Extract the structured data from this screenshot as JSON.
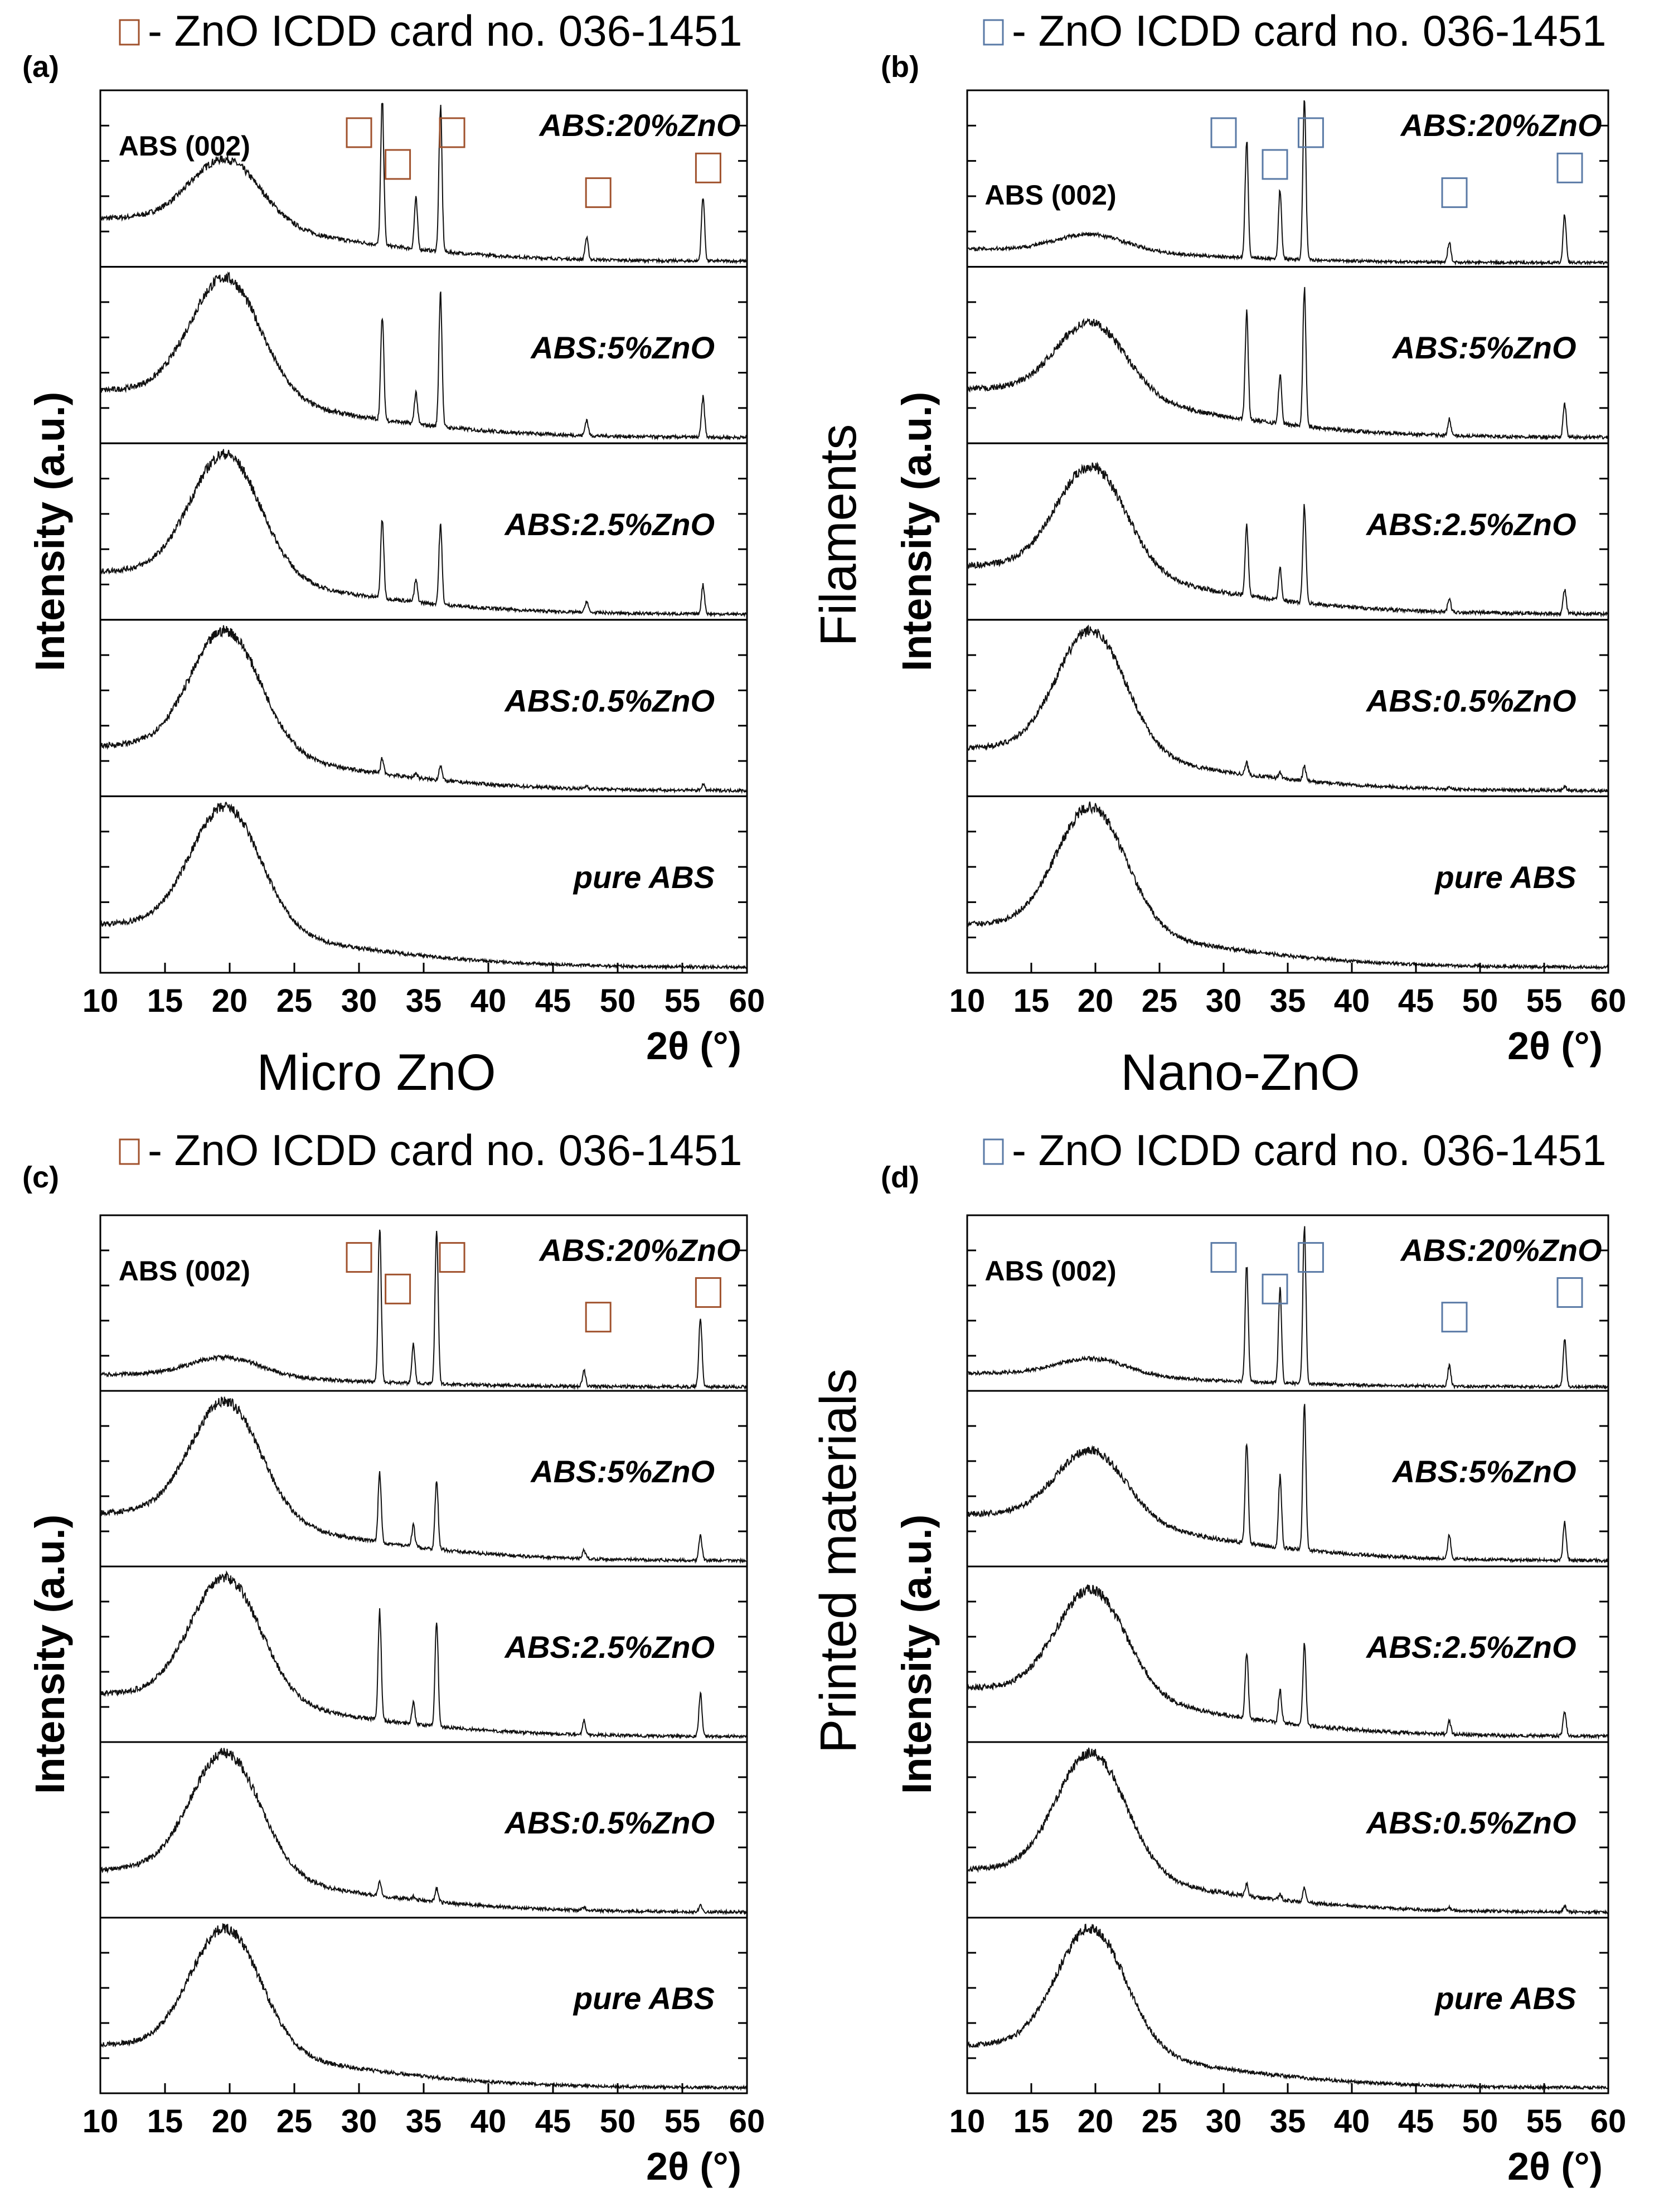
{
  "figure": {
    "side_labels": {
      "left_top": "Micro ZnO",
      "right_top": "Nano-ZnO",
      "right_column_top": "Filaments",
      "right_column_bottom": "Printed materials"
    }
  },
  "chart_data": [
    {
      "type": "line",
      "panel": "(a)",
      "legend": "- ZnO ICDD card no. 036-1451",
      "marker_color": "#a0522d",
      "xlabel": "2θ (°)",
      "ylabel": "Intensity (a.u.)",
      "xlim": [
        10,
        60
      ],
      "x_ticks": [
        "10",
        "15",
        "20",
        "25",
        "30",
        "35",
        "40",
        "45",
        "50",
        "55",
        "60"
      ],
      "annotation": "ABS (002)",
      "reference_peaks": [
        30,
        33,
        37.2,
        48.5,
        57
      ],
      "series": [
        {
          "name": "ABS:20%ZnO",
          "hump": 0.45,
          "baseline": 0.3,
          "peaks": [
            [
              31.8,
              1.0
            ],
            [
              34.4,
              0.35
            ],
            [
              36.3,
              1.0
            ],
            [
              47.6,
              0.15
            ],
            [
              56.6,
              0.45
            ]
          ]
        },
        {
          "name": "ABS:5%ZnO",
          "hump": 0.75,
          "baseline": 0.3,
          "peaks": [
            [
              31.8,
              0.65
            ],
            [
              34.4,
              0.2
            ],
            [
              36.3,
              0.85
            ],
            [
              47.6,
              0.1
            ],
            [
              56.6,
              0.25
            ]
          ]
        },
        {
          "name": "ABS:2.5%ZnO",
          "hump": 0.85,
          "baseline": 0.3,
          "peaks": [
            [
              31.8,
              0.55
            ],
            [
              34.4,
              0.15
            ],
            [
              36.3,
              0.55
            ],
            [
              47.6,
              0.08
            ],
            [
              56.6,
              0.2
            ]
          ]
        },
        {
          "name": "ABS:0.5%ZnO",
          "hump": 0.8,
          "baseline": 0.3,
          "peaks": [
            [
              31.8,
              0.1
            ],
            [
              34.4,
              0.03
            ],
            [
              36.3,
              0.1
            ],
            [
              47.6,
              0.02
            ],
            [
              56.6,
              0.04
            ]
          ]
        },
        {
          "name": "pure ABS",
          "hump": 0.85,
          "baseline": 0.3,
          "peaks": []
        }
      ]
    },
    {
      "type": "line",
      "panel": "(b)",
      "legend": "- ZnO ICDD card no. 036-1451",
      "marker_color": "#5a7aa6",
      "xlabel": "2θ (°)",
      "ylabel": "Intensity (a.u.)",
      "xlim": [
        10,
        60
      ],
      "x_ticks": [
        "10",
        "15",
        "20",
        "25",
        "30",
        "35",
        "40",
        "45",
        "50",
        "55",
        "60"
      ],
      "annotation": "ABS (002)",
      "reference_peaks": [
        30,
        34,
        36.8,
        48,
        57
      ],
      "series": [
        {
          "name": "ABS:20%ZnO",
          "hump": 0.12,
          "baseline": 0.1,
          "peaks": [
            [
              31.8,
              0.85
            ],
            [
              34.4,
              0.5
            ],
            [
              36.3,
              1.15
            ],
            [
              47.6,
              0.15
            ],
            [
              56.6,
              0.35
            ]
          ]
        },
        {
          "name": "ABS:5%ZnO",
          "hump": 0.45,
          "baseline": 0.3,
          "peaks": [
            [
              31.8,
              0.65
            ],
            [
              34.4,
              0.3
            ],
            [
              36.3,
              0.85
            ],
            [
              47.6,
              0.1
            ],
            [
              56.6,
              0.2
            ]
          ]
        },
        {
          "name": "ABS:2.5%ZnO",
          "hump": 0.65,
          "baseline": 0.3,
          "peaks": [
            [
              31.8,
              0.45
            ],
            [
              34.4,
              0.2
            ],
            [
              36.3,
              0.6
            ],
            [
              47.6,
              0.08
            ],
            [
              56.6,
              0.15
            ]
          ]
        },
        {
          "name": "ABS:0.5%ZnO",
          "hump": 0.85,
          "baseline": 0.3,
          "peaks": [
            [
              31.8,
              0.08
            ],
            [
              34.4,
              0.04
            ],
            [
              36.3,
              0.1
            ],
            [
              47.6,
              0.02
            ],
            [
              56.6,
              0.03
            ]
          ]
        },
        {
          "name": "pure ABS",
          "hump": 0.85,
          "baseline": 0.3,
          "peaks": []
        }
      ]
    },
    {
      "type": "line",
      "panel": "(c)",
      "legend": "- ZnO ICDD card no. 036-1451",
      "marker_color": "#a0522d",
      "xlabel": "2θ (°)",
      "ylabel": "Intensity (a.u.)",
      "xlim": [
        10,
        60
      ],
      "x_ticks": [
        "10",
        "15",
        "20",
        "25",
        "30",
        "35",
        "40",
        "45",
        "50",
        "55",
        "60"
      ],
      "annotation": "ABS (002)",
      "reference_peaks": [
        30,
        33,
        37.2,
        48.5,
        57
      ],
      "series": [
        {
          "name": "ABS:20%ZnO",
          "hump": 0.12,
          "baseline": 0.08,
          "peaks": [
            [
              31.6,
              1.0
            ],
            [
              34.2,
              0.25
            ],
            [
              36.0,
              1.0
            ],
            [
              47.4,
              0.1
            ],
            [
              56.4,
              0.45
            ]
          ]
        },
        {
          "name": "ABS:5%ZnO",
          "hump": 0.85,
          "baseline": 0.35,
          "peaks": [
            [
              31.6,
              0.5
            ],
            [
              34.2,
              0.15
            ],
            [
              36.0,
              0.5
            ],
            [
              47.4,
              0.06
            ],
            [
              56.4,
              0.18
            ]
          ]
        },
        {
          "name": "ABS:2.5%ZnO",
          "hump": 0.85,
          "baseline": 0.3,
          "peaks": [
            [
              31.6,
              0.75
            ],
            [
              34.2,
              0.15
            ],
            [
              36.0,
              0.75
            ],
            [
              47.4,
              0.1
            ],
            [
              56.4,
              0.3
            ]
          ]
        },
        {
          "name": "ABS:0.5%ZnO",
          "hump": 0.85,
          "baseline": 0.3,
          "peaks": [
            [
              31.6,
              0.1
            ],
            [
              34.2,
              0.02
            ],
            [
              36.0,
              0.1
            ],
            [
              47.4,
              0.02
            ],
            [
              56.4,
              0.05
            ]
          ]
        },
        {
          "name": "pure ABS",
          "hump": 0.85,
          "baseline": 0.3,
          "peaks": []
        }
      ]
    },
    {
      "type": "line",
      "panel": "(d)",
      "legend": "- ZnO ICDD card no. 036-1451",
      "marker_color": "#5a7aa6",
      "xlabel": "2θ (°)",
      "ylabel": "Intensity (a.u.)",
      "xlim": [
        10,
        60
      ],
      "x_ticks": [
        "10",
        "15",
        "20",
        "25",
        "30",
        "35",
        "40",
        "45",
        "50",
        "55",
        "60"
      ],
      "annotation": "ABS (002)",
      "reference_peaks": [
        30,
        34,
        36.8,
        48,
        57
      ],
      "series": [
        {
          "name": "ABS:20%ZnO",
          "hump": 0.12,
          "baseline": 0.1,
          "peaks": [
            [
              31.8,
              0.85
            ],
            [
              34.4,
              0.7
            ],
            [
              36.3,
              1.15
            ],
            [
              47.6,
              0.15
            ],
            [
              56.6,
              0.35
            ]
          ]
        },
        {
          "name": "ABS:5%ZnO",
          "hump": 0.45,
          "baseline": 0.3,
          "peaks": [
            [
              31.8,
              0.65
            ],
            [
              34.4,
              0.45
            ],
            [
              36.3,
              0.95
            ],
            [
              47.6,
              0.15
            ],
            [
              56.6,
              0.25
            ]
          ]
        },
        {
          "name": "ABS:2.5%ZnO",
          "hump": 0.65,
          "baseline": 0.3,
          "peaks": [
            [
              31.8,
              0.4
            ],
            [
              34.4,
              0.2
            ],
            [
              36.3,
              0.5
            ],
            [
              47.6,
              0.08
            ],
            [
              56.6,
              0.15
            ]
          ]
        },
        {
          "name": "ABS:0.5%ZnO",
          "hump": 0.85,
          "baseline": 0.3,
          "peaks": [
            [
              31.8,
              0.08
            ],
            [
              34.4,
              0.04
            ],
            [
              36.3,
              0.1
            ],
            [
              47.6,
              0.02
            ],
            [
              56.6,
              0.04
            ]
          ]
        },
        {
          "name": "pure ABS",
          "hump": 0.85,
          "baseline": 0.3,
          "peaks": []
        }
      ]
    }
  ]
}
